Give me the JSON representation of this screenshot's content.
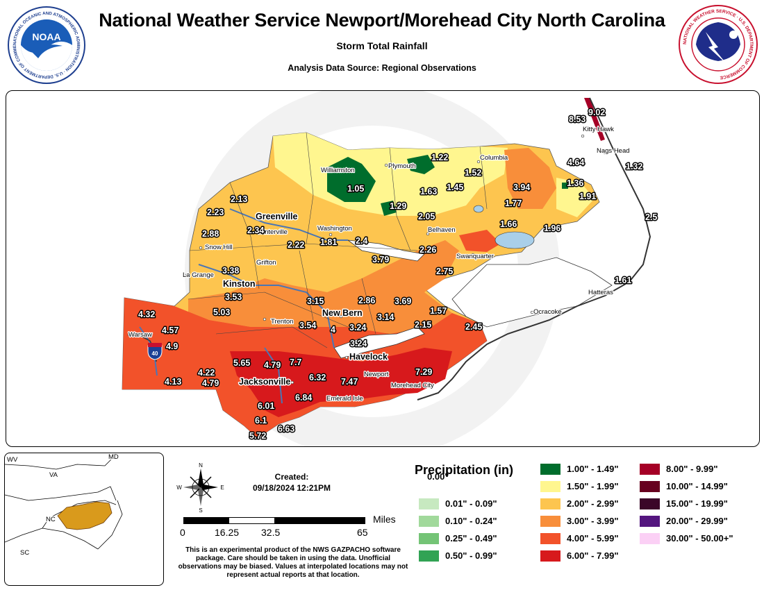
{
  "header": {
    "title": "National Weather Service Newport/Morehead City North Carolina",
    "subtitle": "Storm Total Rainfall",
    "source": "Analysis Data Source: Regional Observations"
  },
  "logos": {
    "noaa_text": "NOAA",
    "noaa_ring": "NATIONAL OCEANIC AND ATMOSPHERIC ADMINISTRATION · U.S. DEPARTMENT OF COMMERCE",
    "nws_ring": "NATIONAL WEATHER SERVICE · U.S. DEPARTMENT OF COMMERCE"
  },
  "map": {
    "cities": {
      "kitty_hawk": "Kitty Hawk",
      "nags_head": "Nags Head",
      "williamston": "Williamston",
      "plymouth": "Plymouth",
      "columbia": "Columbia",
      "greenville": "Greenville",
      "winterville": "Winterville",
      "washington": "Washington",
      "belhaven": "Belhaven",
      "snow_hill": "Snow Hill",
      "grifton": "Grifton",
      "swanquarter": "Swanquarter",
      "la_grange": "La Grange",
      "kinston": "Kinston",
      "hatteras": "Hatteras",
      "new_bern": "New Bern",
      "ocracoke": "Ocracoke",
      "trenton": "Trenton",
      "warsaw": "Warsaw",
      "havelock": "Havelock",
      "newport": "Newport",
      "jacksonville": "Jacksonville",
      "morehead_city": "Morehead City",
      "emerald_isle": "Emerald Isle"
    },
    "interstate": "40",
    "values": [
      "8.53",
      "9.02",
      "1.22",
      "4.64",
      "1.32",
      "1.52",
      "1.05",
      "1.63",
      "1.45",
      "3.94",
      "1.36",
      "2.13",
      "1.29",
      "1.91",
      "2.23",
      "2.05",
      "1.77",
      "2.5",
      "2.88",
      "2.34",
      "2.22",
      "1.81",
      "2.4",
      "1.66",
      "1.96",
      "2.26",
      "3.79",
      "2.75",
      "3.38",
      "1.61",
      "3.53",
      "3.15",
      "2.86",
      "3.69",
      "4.32",
      "5.03",
      "1.57",
      "3.14",
      "3.54",
      "4",
      "3.24",
      "2.15",
      "4.57",
      "3.24",
      "2.45",
      "4.9",
      "5.65",
      "4.79",
      "7.7",
      "7.29",
      "4.22",
      "6.32",
      "7.47",
      "4.13",
      "4.79",
      "6.84",
      "6.01",
      "6.1",
      "6.63",
      "5.72"
    ]
  },
  "inset": {
    "states": [
      "WV",
      "MD",
      "VA",
      "NC",
      "SC"
    ]
  },
  "compass": {
    "n": "N",
    "s": "S",
    "e": "E",
    "w": "W"
  },
  "created": {
    "label": "Created:",
    "date": "09/18/2024 12:21PM"
  },
  "scale": {
    "unit": "Miles",
    "ticks": [
      "0",
      "16.25",
      "32.5",
      "65"
    ]
  },
  "disclaimer": "This is an experimental product of the NWS GAZPACHO software package. Care should be taken in using the data. Unofficial observations may be biased. Values at interpolated locations may not represent actual reports at that location.",
  "legend": {
    "title": "Precipitation (in)",
    "items": [
      {
        "label": "0.00\"",
        "color": "#ffffff"
      },
      {
        "label": "0.01\" - 0.09\"",
        "color": "#c7e9c0"
      },
      {
        "label": "0.10\" - 0.24\"",
        "color": "#a1d99b"
      },
      {
        "label": "0.25\" - 0.49\"",
        "color": "#74c476"
      },
      {
        "label": "0.50\" - 0.99\"",
        "color": "#31a354"
      },
      {
        "label": "1.00\" - 1.49\"",
        "color": "#006d2c"
      },
      {
        "label": "1.50\" - 1.99\"",
        "color": "#fff68f"
      },
      {
        "label": "2.00\" - 2.99\"",
        "color": "#fdc54f"
      },
      {
        "label": "3.00\" - 3.99\"",
        "color": "#f88e3a"
      },
      {
        "label": "4.00\" - 5.99\"",
        "color": "#f2522a"
      },
      {
        "label": "6.00\" - 7.99\"",
        "color": "#d7191c"
      },
      {
        "label": "8.00\" - 9.99\"",
        "color": "#a50026"
      },
      {
        "label": "10.00\" - 14.99\"",
        "color": "#67001f"
      },
      {
        "label": "15.00\" - 19.99\"",
        "color": "#3b0628"
      },
      {
        "label": "20.00\" - 29.99\"",
        "color": "#54167f"
      },
      {
        "label": "30.00\" - 50.00+\"",
        "color": "#fbd0f5"
      }
    ]
  }
}
